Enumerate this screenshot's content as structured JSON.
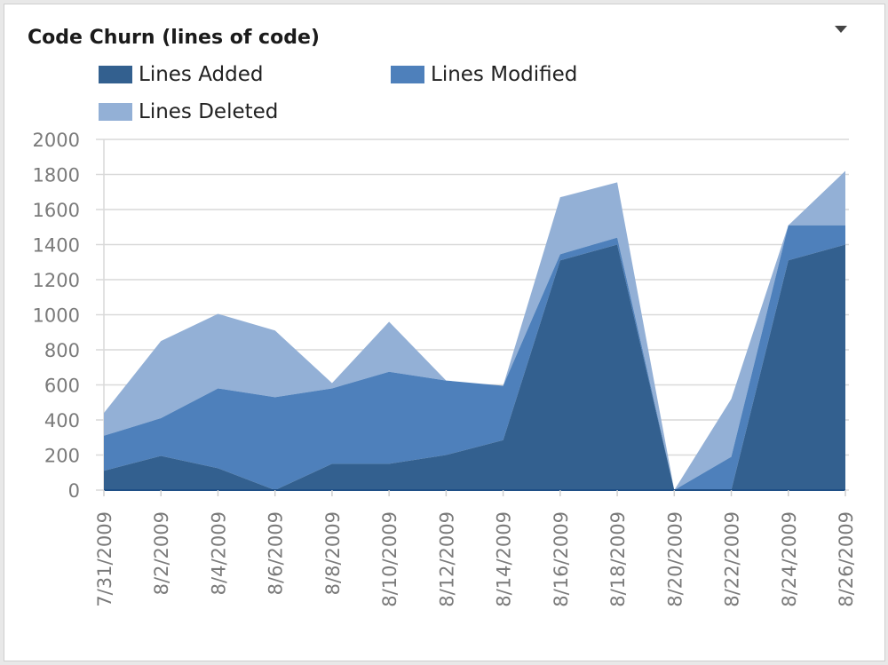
{
  "widget": {
    "title": "Code Churn (lines of code)",
    "menu_icon": "dropdown-triangle-icon"
  },
  "legend": [
    {
      "label": "Lines Added",
      "color": "#33608f"
    },
    {
      "label": "Lines Modified",
      "color": "#4e80bb"
    },
    {
      "label": "Lines Deleted",
      "color": "#93b0d6"
    }
  ],
  "chart_data": {
    "type": "area",
    "stacked": true,
    "title": "Code Churn (lines of code)",
    "xlabel": "",
    "ylabel": "",
    "ylim": [
      0,
      2000
    ],
    "yticks": [
      0,
      200,
      400,
      600,
      800,
      1000,
      1200,
      1400,
      1600,
      1800,
      2000
    ],
    "grid": true,
    "legend_position": "top",
    "categories": [
      "7/31/2009",
      "8/2/2009",
      "8/4/2009",
      "8/6/2009",
      "8/8/2009",
      "8/10/2009",
      "8/12/2009",
      "8/14/2009",
      "8/16/2009",
      "8/18/2009",
      "8/20/2009",
      "8/22/2009",
      "8/24/2009",
      "8/26/2009"
    ],
    "series": [
      {
        "name": "Lines Added",
        "values": [
          110,
          195,
          125,
          0,
          150,
          150,
          200,
          285,
          1310,
          1400,
          0,
          0,
          1310,
          1400
        ]
      },
      {
        "name": "Lines Modified",
        "values": [
          200,
          215,
          455,
          530,
          430,
          525,
          425,
          310,
          35,
          40,
          0,
          190,
          200,
          110
        ]
      },
      {
        "name": "Lines Deleted",
        "values": [
          130,
          440,
          425,
          380,
          30,
          285,
          0,
          0,
          325,
          315,
          0,
          330,
          0,
          310
        ]
      }
    ]
  }
}
